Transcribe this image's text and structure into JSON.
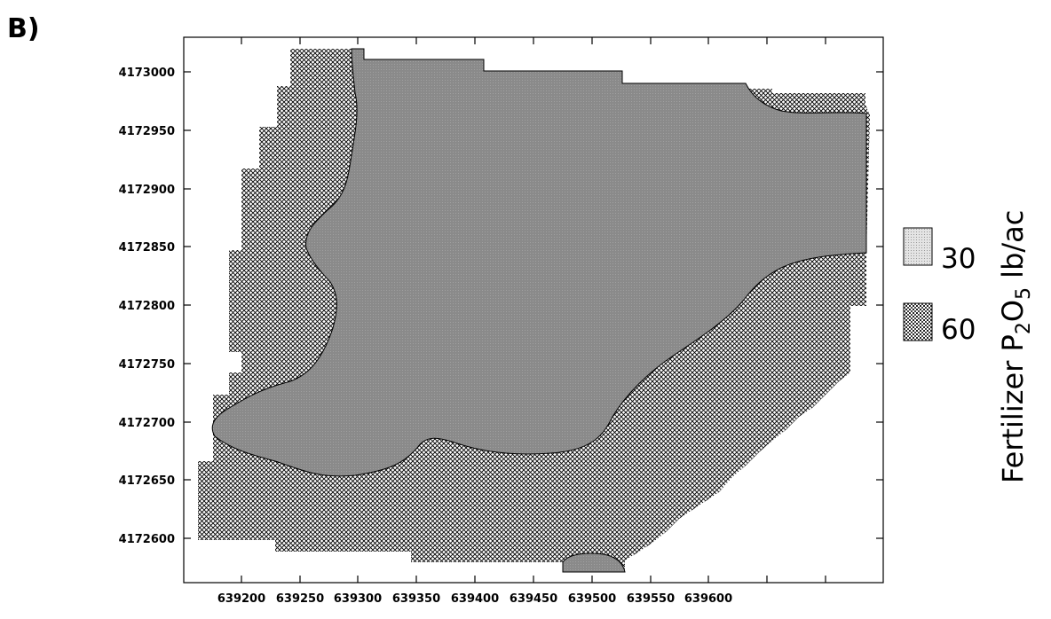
{
  "panel_label": "B)",
  "legend": {
    "title_main": "Fertilizer P",
    "title_sub1": "2",
    "title_mid": "O",
    "title_sub2": "5",
    "title_end": " lb/ac",
    "items": [
      {
        "label": "30",
        "pattern": "fine-dots"
      },
      {
        "label": "60",
        "pattern": "crosshatch"
      }
    ]
  },
  "map_data": {
    "type": "map",
    "x_ticks": [
      "639200",
      "639250",
      "639300",
      "639350",
      "639400",
      "639450",
      "639500",
      "639550",
      "639600"
    ],
    "y_ticks": [
      "4173000",
      "4172950",
      "4172900",
      "4172850",
      "4172800",
      "4172750",
      "4172700",
      "4172650",
      "4172600"
    ],
    "xlim": [
      639170,
      639605
    ],
    "ylim": [
      4172565,
      4173030
    ],
    "zones": [
      {
        "rate": "30",
        "fill_color": "#8c8c8c"
      },
      {
        "rate": "60",
        "fill_color": "#cfcfcf"
      }
    ]
  }
}
